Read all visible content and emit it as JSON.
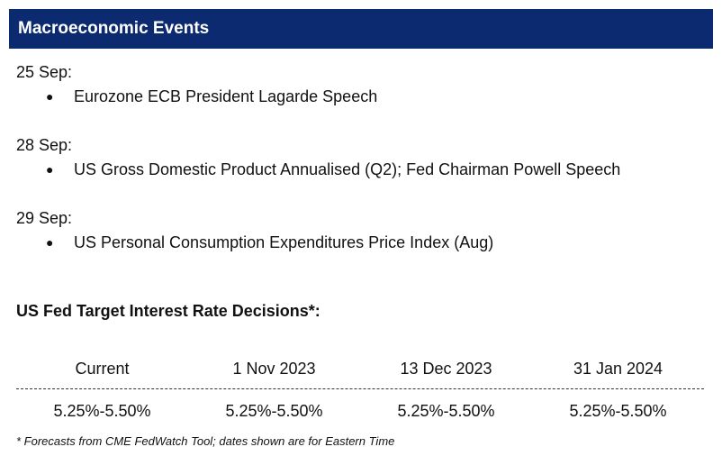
{
  "header": {
    "title": "Macroeconomic Events"
  },
  "events": [
    {
      "date": "25 Sep:",
      "items": [
        "Eurozone ECB President Lagarde Speech"
      ]
    },
    {
      "date": "28 Sep:",
      "items": [
        "US Gross Domestic Product Annualised (Q2); Fed Chairman Powell Speech"
      ]
    },
    {
      "date": "29 Sep:",
      "items": [
        "US Personal Consumption Expenditures Price Index (Aug)"
      ]
    }
  ],
  "bullet_glyph": "●",
  "rates": {
    "title": "US Fed Target Interest Rate Decisions*:",
    "columns": [
      "Current",
      "1 Nov 2023",
      "13 Dec 2023",
      "31 Jan 2024"
    ],
    "values": [
      "5.25%-5.50%",
      "5.25%-5.50%",
      "5.25%-5.50%",
      "5.25%-5.50%"
    ]
  },
  "footnote": "* Forecasts from CME FedWatch Tool; dates shown are for Eastern Time",
  "colors": {
    "header_bg": "#0b2a6f",
    "header_text": "#ffffff"
  }
}
